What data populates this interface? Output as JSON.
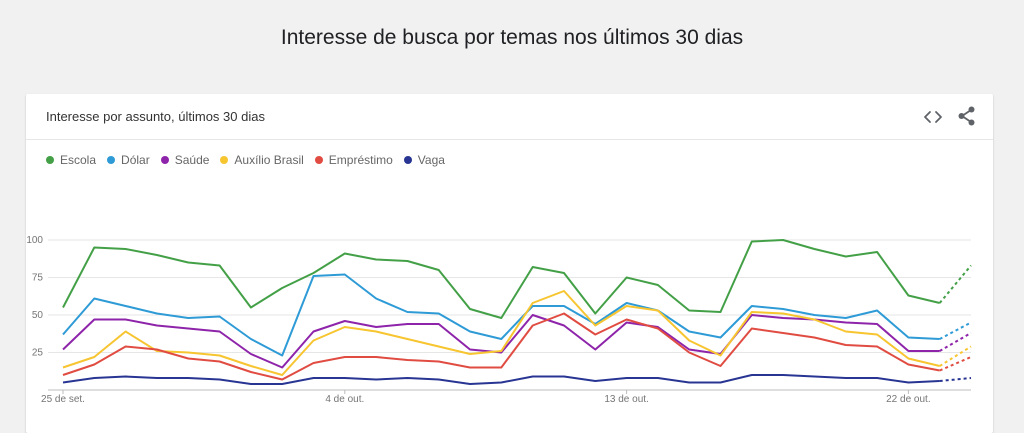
{
  "page_title": "Interesse de busca por temas nos últimos 30 dias",
  "card": {
    "title": "Interesse por assunto, últimos 30 dias",
    "embed_icon": "embed-code-icon",
    "share_icon": "share-icon"
  },
  "chart_data": {
    "type": "line",
    "ylim": [
      0,
      100
    ],
    "y_ticks": [
      "100",
      "75",
      "50",
      "25"
    ],
    "y_tick_values": [
      100,
      75,
      50,
      25
    ],
    "x": [
      "25 de set.",
      "26 de set.",
      "27 de set.",
      "28 de set.",
      "29 de set.",
      "30 de set.",
      "1 de out.",
      "2 de out.",
      "3 de out.",
      "4 de out.",
      "5 de out.",
      "6 de out.",
      "7 de out.",
      "8 de out.",
      "9 de out.",
      "10 de out.",
      "11 de out.",
      "12 de out.",
      "13 de out.",
      "14 de out.",
      "15 de out.",
      "16 de out.",
      "17 de out.",
      "18 de out.",
      "19 de out.",
      "20 de out.",
      "21 de out.",
      "22 de out.",
      "23 de out.",
      "24 de out."
    ],
    "x_tick_labels": [
      "25 de set.",
      "4 de out.",
      "13 de out.",
      "22 de out."
    ],
    "x_tick_indices": [
      0,
      9,
      18,
      27
    ],
    "partial_from_index": 28,
    "grid": true,
    "legend_position": "top-left",
    "series": [
      {
        "name": "Escola",
        "color": "#43a047",
        "values": [
          55,
          95,
          94,
          90,
          85,
          83,
          55,
          68,
          78,
          91,
          87,
          86,
          80,
          54,
          48,
          82,
          78,
          51,
          75,
          70,
          53,
          52,
          99,
          100,
          94,
          89,
          92,
          63,
          58,
          83
        ]
      },
      {
        "name": "Dólar",
        "color": "#2e9bd6",
        "values": [
          37,
          61,
          56,
          51,
          48,
          49,
          34,
          23,
          76,
          77,
          61,
          52,
          51,
          39,
          34,
          56,
          56,
          44,
          58,
          53,
          39,
          35,
          56,
          54,
          50,
          48,
          53,
          35,
          34,
          45
        ]
      },
      {
        "name": "Saúde",
        "color": "#8e24aa",
        "values": [
          27,
          47,
          47,
          43,
          41,
          39,
          24,
          15,
          39,
          46,
          42,
          44,
          44,
          27,
          25,
          50,
          43,
          27,
          45,
          42,
          27,
          24,
          50,
          48,
          47,
          45,
          44,
          26,
          26,
          38
        ]
      },
      {
        "name": "Auxílio Brasil",
        "color": "#f7c530",
        "values": [
          15,
          22,
          39,
          26,
          25,
          23,
          16,
          10,
          33,
          42,
          39,
          34,
          29,
          24,
          26,
          58,
          66,
          43,
          56,
          53,
          33,
          23,
          52,
          51,
          47,
          39,
          37,
          21,
          16,
          29
        ]
      },
      {
        "name": "Empréstimo",
        "color": "#e04c42",
        "values": [
          10,
          17,
          29,
          27,
          21,
          19,
          12,
          7,
          18,
          22,
          22,
          20,
          19,
          15,
          15,
          43,
          51,
          37,
          47,
          41,
          25,
          16,
          41,
          38,
          35,
          30,
          29,
          17,
          13,
          22
        ]
      },
      {
        "name": "Vaga",
        "color": "#283593",
        "values": [
          5,
          8,
          9,
          8,
          8,
          7,
          4,
          4,
          8,
          8,
          7,
          8,
          7,
          4,
          5,
          9,
          9,
          6,
          8,
          8,
          5,
          5,
          10,
          10,
          9,
          8,
          8,
          5,
          6,
          8
        ]
      }
    ]
  }
}
